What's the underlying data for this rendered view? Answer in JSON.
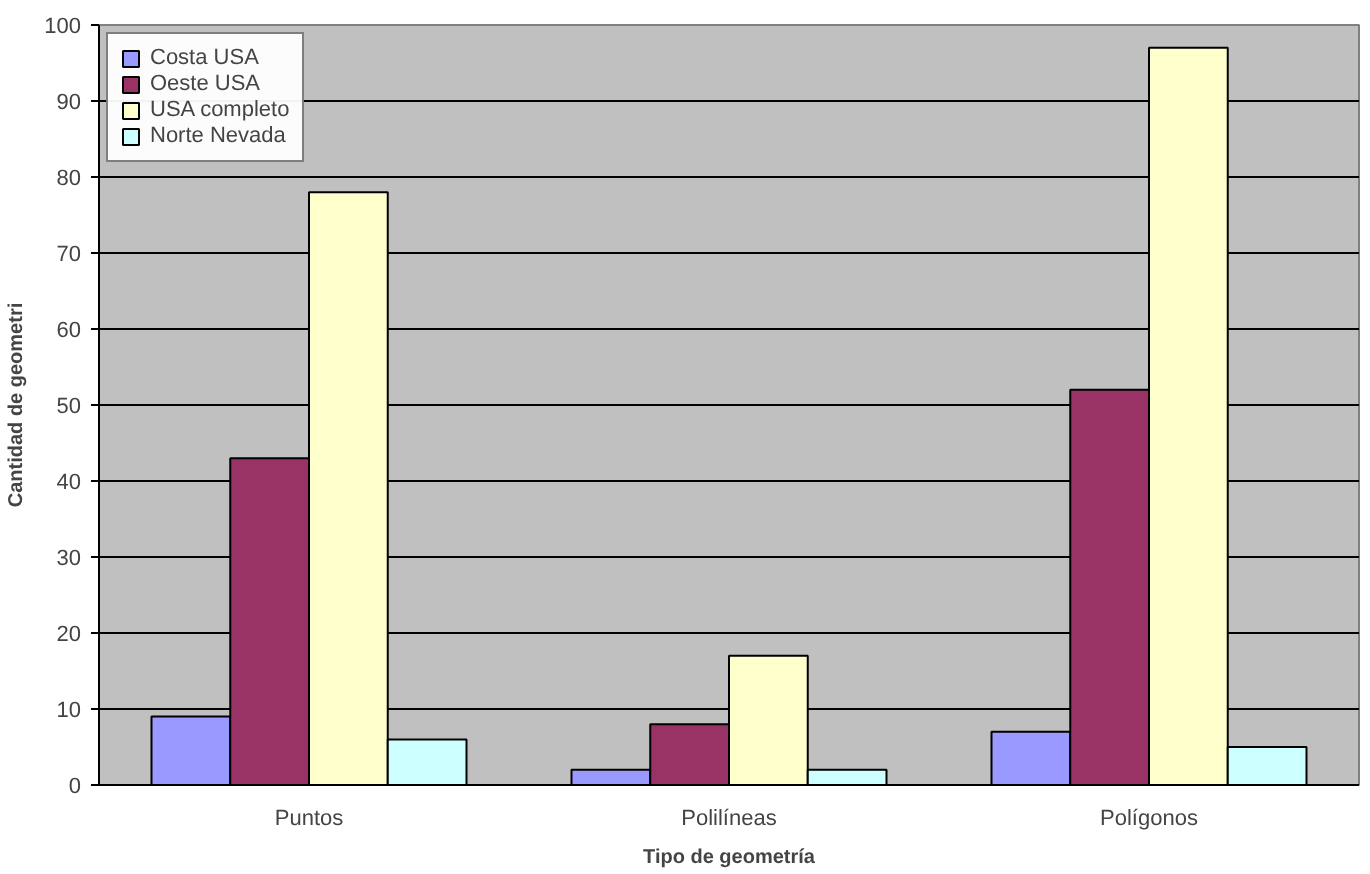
{
  "chart_data": {
    "type": "bar",
    "xlabel": "Tipo de geometría",
    "ylabel": "Cantidad de geometri",
    "categories": [
      "Puntos",
      "Polilíneas",
      "Polígonos"
    ],
    "series": [
      {
        "name": "Costa USA",
        "color": "#9999ff",
        "values": [
          9,
          2,
          7
        ]
      },
      {
        "name": "Oeste USA",
        "color": "#993366",
        "values": [
          43,
          8,
          52
        ]
      },
      {
        "name": "USA completo",
        "color": "#ffffcc",
        "values": [
          78,
          17,
          97
        ]
      },
      {
        "name": "Norte Nevada",
        "color": "#ccffff",
        "values": [
          6,
          2,
          5
        ]
      }
    ],
    "ylim": [
      0,
      100
    ],
    "yticks": [
      0,
      10,
      20,
      30,
      40,
      50,
      60,
      70,
      80,
      90,
      100
    ],
    "grid": "y",
    "legend": "top left"
  }
}
